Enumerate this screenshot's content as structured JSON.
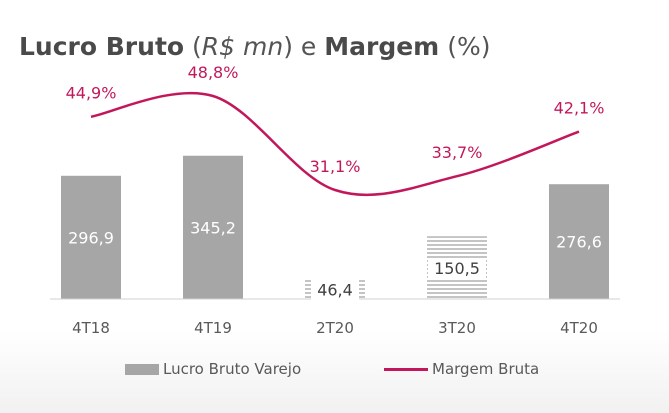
{
  "title": {
    "bold1": "Lucro Bruto",
    "italic": "R$ mn",
    "mid": "e",
    "bold2": "Margem",
    "tail": "(%)"
  },
  "chart_data": {
    "type": "bar+line",
    "categories": [
      "4T18",
      "4T19",
      "2T20",
      "3T20",
      "4T20"
    ],
    "bars": {
      "name": "Lucro Bruto Varejo",
      "values": [
        296.9,
        345.2,
        46.4,
        150.5,
        276.6
      ],
      "labels": [
        "296,9",
        "345,2",
        "46,4",
        "150,5",
        "276,6"
      ],
      "styles": [
        "solid",
        "solid",
        "hatched",
        "hatched",
        "solid"
      ],
      "color": "#a6a6a6"
    },
    "line": {
      "name": "Margem Bruta",
      "values": [
        44.9,
        48.8,
        31.1,
        33.7,
        42.1
      ],
      "labels": [
        "44,9%",
        "48,8%",
        "31,1%",
        "33,7%",
        "42,1%"
      ],
      "color": "#c2185b"
    }
  },
  "legend": {
    "bar_label": "Lucro Bruto Varejo",
    "line_label": "Margem Bruta"
  }
}
